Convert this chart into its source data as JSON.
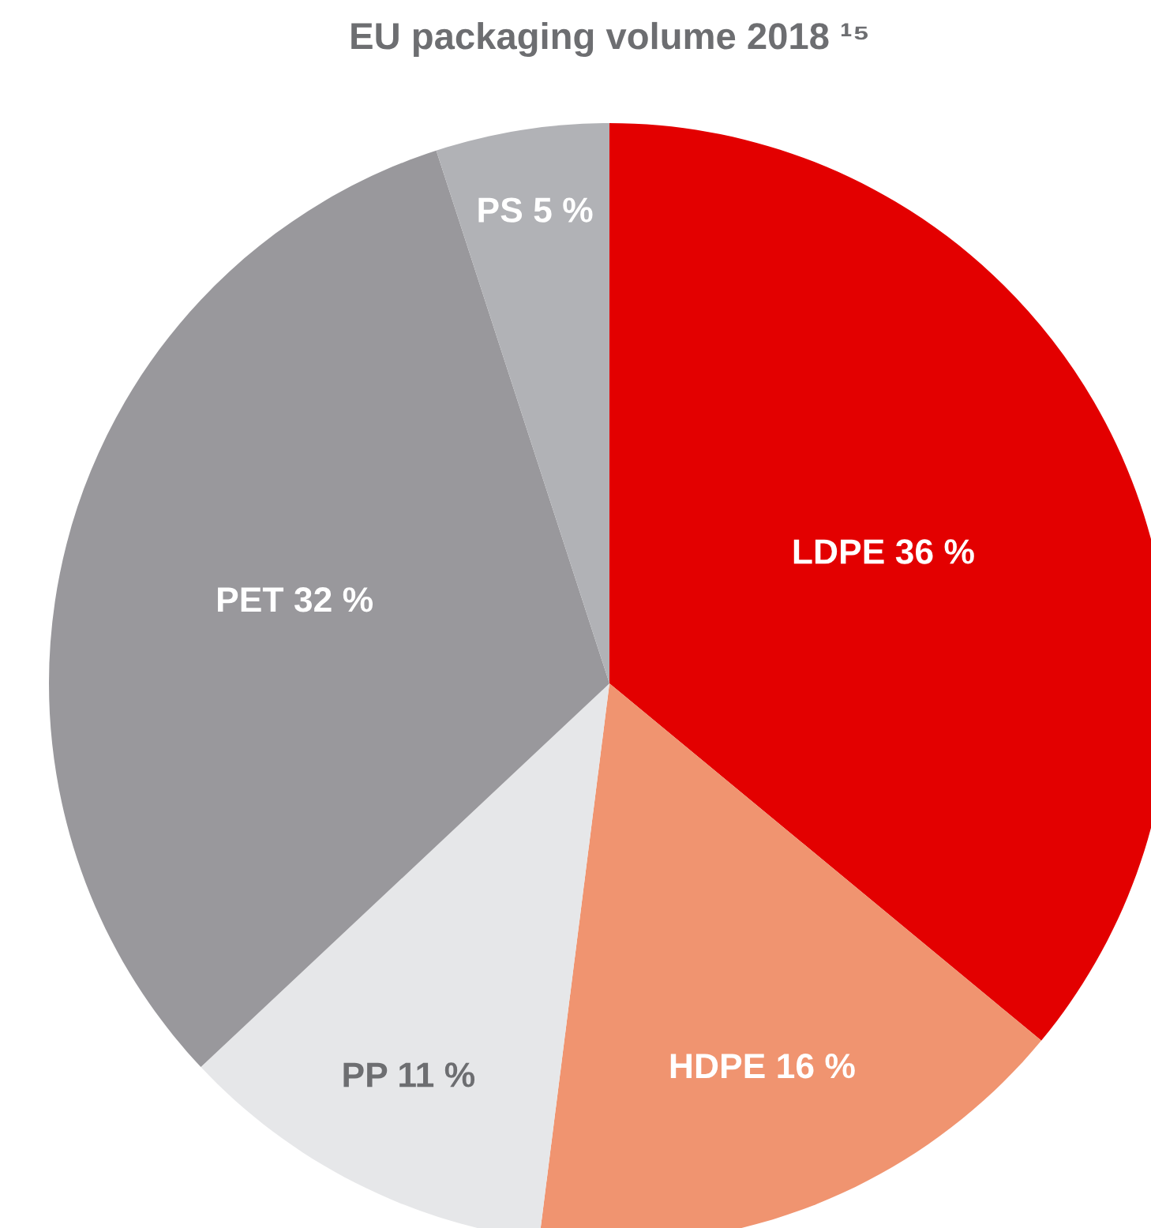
{
  "chart_data": {
    "type": "pie",
    "title": "EU packaging volume 2018 ¹⁵",
    "categories": [
      "LDPE",
      "HDPE",
      "PP",
      "PET",
      "PS"
    ],
    "values": [
      36,
      16,
      11,
      32,
      5
    ],
    "value_labels": [
      "36 %",
      "16 %",
      "11 %",
      "32 %",
      "5 %"
    ],
    "colors": [
      "#e30000",
      "#f09470",
      "#e6e7e9",
      "#99989c",
      "#b1b2b6"
    ]
  }
}
